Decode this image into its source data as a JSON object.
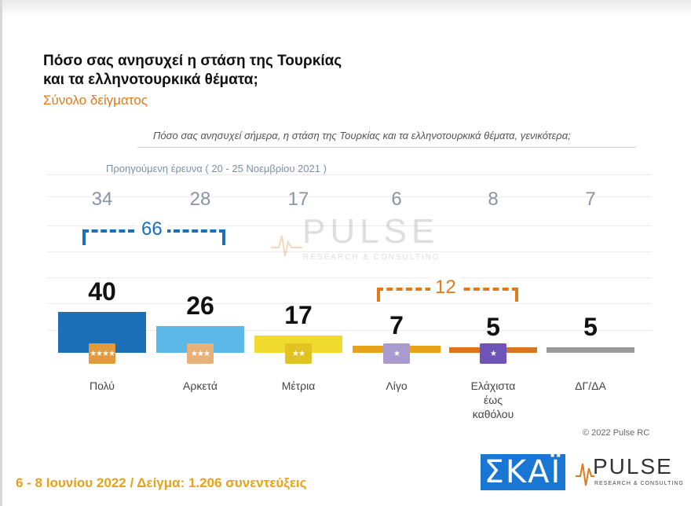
{
  "header": {
    "title_line1": "Πόσο σας ανησυχεί η στάση της Τουρκίας",
    "title_line2": "και τα ελληνοτουρκικά θέματα;",
    "subtitle": "Σύνολο δείγματος",
    "question": "Πόσο σας ανησυχεί σήμερα, η στάση της Τουρκίας και τα ελληνοτουρκικά θέματα, γενικότερα;"
  },
  "chart_data": {
    "type": "bar",
    "categories": [
      "Πολύ",
      "Αρκετά",
      "Μέτρια",
      "Λίγο",
      "Ελάχιστα έως καθόλου",
      "ΔΓ/ΔΑ"
    ],
    "category_lines": [
      [
        "Πολύ"
      ],
      [
        "Αρκετά"
      ],
      [
        "Μέτρια"
      ],
      [
        "Λίγο"
      ],
      [
        "Ελάχιστα",
        "έως",
        "καθόλου"
      ],
      [
        "ΔΓ/ΔΑ"
      ]
    ],
    "values": [
      40,
      26,
      17,
      7,
      5,
      5
    ],
    "previous_label": "Προηγούμενη έρευνα  ( 20 - 25 Νοεμβρίου  2021 )",
    "previous_values": [
      34,
      28,
      17,
      6,
      8,
      7
    ],
    "colors": [
      "#1a6fb6",
      "#5cb8e8",
      "#f0da2e",
      "#e6a21a",
      "#d9731e",
      "#9a9a9a"
    ],
    "brackets": [
      {
        "label": "66",
        "from": 0,
        "to": 1,
        "color": "#1a6fb6"
      },
      {
        "label": "12",
        "from": 3,
        "to": 4,
        "color": "#e07a1a"
      }
    ],
    "ylim": [
      0,
      45
    ],
    "grid": true
  },
  "watermark": {
    "text": "PULSE",
    "sub": "RESEARCH & CONSULTING"
  },
  "copyright": "© 2022 Pulse RC",
  "footer": "6 - 8  Ιουνίου  2022  /  Δείγμα:  1.206 συνεντεύξεις",
  "logos": {
    "skai": "ΣΚΑΪ",
    "pulse": "PULSE",
    "pulse_sub": "RESEARCH & CONSULTING"
  }
}
